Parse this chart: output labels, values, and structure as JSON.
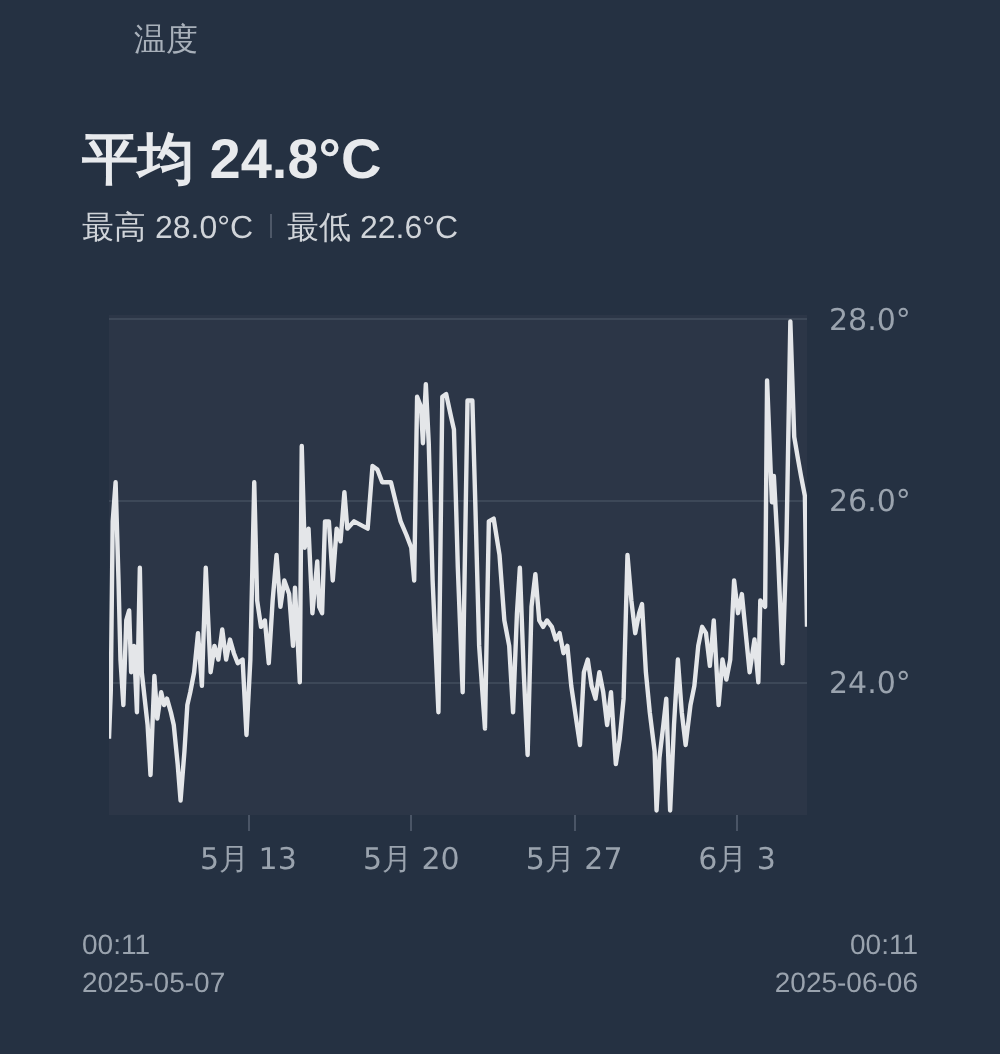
{
  "chart_data": {
    "type": "line",
    "title": "温度",
    "subtitle": "平均 24.8°C",
    "annotations": [
      "最高 28.0°C",
      "最低 22.6°C",
      "00:11\n2025-05-07",
      "00:11\n2025-06-06"
    ],
    "xlim": [
      "2025-05-07T00:11",
      "2025-06-06T00:11"
    ],
    "ylim": [
      22.55,
      28.05
    ],
    "xticks": [
      {
        "value": "2025-05-13",
        "label": "5月 13"
      },
      {
        "value": "2025-05-20",
        "label": "5月 20"
      },
      {
        "value": "2025-05-27",
        "label": "5月 27"
      },
      {
        "value": "2025-06-03",
        "label": "6月 3"
      }
    ],
    "yticks": [
      {
        "value": 24,
        "label": "24.0°"
      },
      {
        "value": 26,
        "label": "26.0°"
      },
      {
        "value": 28,
        "label": "28.0°"
      }
    ],
    "grid": "y",
    "marker": "none",
    "line_style": "solid",
    "series": [
      {
        "color": "#e4e6e9",
        "x": [
          "2025-05-07T00:11",
          "2025-05-07T02:00",
          "2025-05-07T04:00",
          "2025-05-07T07:00",
          "2025-05-07T10:00",
          "2025-05-07T12:00",
          "2025-05-07T15:00",
          "2025-05-07T18:00",
          "2025-05-07T21:00",
          "2025-05-07T23:00",
          "2025-05-08T02:00",
          "2025-05-08T05:00",
          "2025-05-08T08:00",
          "2025-05-08T10:00",
          "2025-05-08T13:00",
          "2025-05-08T16:00",
          "2025-05-08T19:00",
          "2025-05-08T23:00",
          "2025-05-09T02:00",
          "2025-05-09T06:00",
          "2025-05-09T09:00",
          "2025-05-09T12:00",
          "2025-05-09T16:00",
          "2025-05-09T19:00",
          "2025-05-09T23:00",
          "2025-05-10T02:00",
          "2025-05-10T06:00",
          "2025-05-10T09:00",
          "2025-05-10T12:00",
          "2025-05-10T16:00",
          "2025-05-10T20:00",
          "2025-05-11T00:00",
          "2025-05-11T04:00",
          "2025-05-11T09:00",
          "2025-05-11T13:00",
          "2025-05-11T17:00",
          "2025-05-11T21:00",
          "2025-05-12T01:00",
          "2025-05-12T05:00",
          "2025-05-12T09:00",
          "2025-05-12T13:00",
          "2025-05-12T18:00",
          "2025-05-12T22:00",
          "2025-05-13T02:00",
          "2025-05-13T06:00",
          "2025-05-13T09:00",
          "2025-05-13T13:00",
          "2025-05-13T17:00",
          "2025-05-13T21:00",
          "2025-05-14T01:00",
          "2025-05-14T05:00",
          "2025-05-14T09:00",
          "2025-05-14T13:00",
          "2025-05-14T18:00",
          "2025-05-14T22:00",
          "2025-05-15T00:00",
          "2025-05-15T05:00",
          "2025-05-15T07:00",
          "2025-05-15T10:00",
          "2025-05-15T14:00",
          "2025-05-15T18:00",
          "2025-05-15T23:00",
          "2025-05-16T01:00",
          "2025-05-16T04:00",
          "2025-05-16T07:00",
          "2025-05-16T11:00",
          "2025-05-16T15:00",
          "2025-05-16T19:00",
          "2025-05-16T23:00",
          "2025-05-17T03:00",
          "2025-05-17T06:00",
          "2025-05-17T13:00",
          "2025-05-18T03:00",
          "2025-05-18T08:00",
          "2025-05-18T13:00",
          "2025-05-18T18:00",
          "2025-05-19T03:00",
          "2025-05-19T08:00",
          "2025-05-19T13:00",
          "2025-05-19T19:00",
          "2025-05-20T00:00",
          "2025-05-20T03:00",
          "2025-05-20T06:00",
          "2025-05-20T10:00",
          "2025-05-20T12:00",
          "2025-05-20T15:00",
          "2025-05-20T18:00",
          "2025-05-20T22:00",
          "2025-05-21T04:00",
          "2025-05-21T08:00",
          "2025-05-21T12:00",
          "2025-05-21T17:00",
          "2025-05-21T20:00",
          "2025-05-22T00:00",
          "2025-05-22T05:00",
          "2025-05-22T10:00",
          "2025-05-22T15:00",
          "2025-05-22T18:00",
          "2025-05-22T22:00",
          "2025-05-23T04:00",
          "2025-05-23T08:00",
          "2025-05-23T13:00",
          "2025-05-23T19:00",
          "2025-05-24T00:00",
          "2025-05-24T05:00",
          "2025-05-24T09:00",
          "2025-05-24T13:00",
          "2025-05-24T16:00",
          "2025-05-24T20:00",
          "2025-05-25T00:00",
          "2025-05-25T04:00",
          "2025-05-25T08:00",
          "2025-05-25T12:00",
          "2025-05-25T16:00",
          "2025-05-25T20:00",
          "2025-05-26T01:00",
          "2025-05-26T05:00",
          "2025-05-26T09:00",
          "2025-05-26T13:00",
          "2025-05-26T17:00",
          "2025-05-26T21:00",
          "2025-05-27T01:00",
          "2025-05-27T06:00",
          "2025-05-27T10:00",
          "2025-05-27T14:00",
          "2025-05-27T18:00",
          "2025-05-27T22:00",
          "2025-05-28T02:00",
          "2025-05-28T06:00",
          "2025-05-28T10:00",
          "2025-05-28T14:00",
          "2025-05-28T19:00",
          "2025-05-28T23:00",
          "2025-05-29T03:00",
          "2025-05-29T07:00",
          "2025-05-29T11:00",
          "2025-05-29T15:00",
          "2025-05-29T19:00",
          "2025-05-29T22:00",
          "2025-05-30T02:00",
          "2025-05-30T06:00",
          "2025-05-30T11:00",
          "2025-05-30T13:00",
          "2025-05-30T16:00",
          "2025-05-30T20:00",
          "2025-05-30T23:00",
          "2025-05-31T03:00",
          "2025-05-31T07:00",
          "2025-05-31T11:00",
          "2025-05-31T15:00",
          "2025-05-31T19:00",
          "2025-06-01T00:00",
          "2025-06-01T04:00",
          "2025-06-01T08:00",
          "2025-06-01T12:00",
          "2025-06-01T16:00",
          "2025-06-01T20:00",
          "2025-06-02T00:00",
          "2025-06-02T05:00",
          "2025-06-02T09:00",
          "2025-06-02T13:00",
          "2025-06-02T17:00",
          "2025-06-02T21:00",
          "2025-06-03T01:00",
          "2025-06-03T05:00",
          "2025-06-03T09:00",
          "2025-06-03T13:00",
          "2025-06-03T18:00",
          "2025-06-03T22:00",
          "2025-06-04T00:00",
          "2025-06-04T05:00",
          "2025-06-04T07:00",
          "2025-06-04T12:00",
          "2025-06-04T14:00",
          "2025-06-04T18:00",
          "2025-06-04T23:00",
          "2025-06-05T03:00",
          "2025-06-05T07:00",
          "2025-06-05T11:00",
          "2025-06-05T15:00",
          "2025-06-05T18:00",
          "2025-06-05T22:00",
          "2025-06-06T00:11"
        ],
        "values": [
          23.39,
          23.9,
          25.78,
          26.21,
          25.13,
          24.26,
          23.76,
          24.69,
          24.8,
          24.12,
          24.41,
          23.68,
          25.27,
          24.12,
          23.83,
          23.54,
          22.99,
          24.08,
          23.61,
          23.9,
          23.76,
          23.83,
          23.68,
          23.54,
          23.11,
          22.71,
          23.25,
          23.76,
          23.9,
          24.12,
          24.55,
          23.97,
          25.27,
          24.12,
          24.41,
          24.26,
          24.59,
          24.26,
          24.48,
          24.33,
          24.22,
          24.26,
          23.43,
          24.26,
          26.21,
          24.91,
          24.62,
          24.69,
          24.22,
          24.91,
          25.41,
          24.84,
          25.13,
          24.98,
          24.41,
          25.05,
          24.01,
          26.61,
          25.49,
          25.7,
          24.77,
          25.34,
          24.84,
          24.77,
          25.78,
          25.78,
          25.13,
          25.7,
          25.56,
          26.1,
          25.7,
          25.78,
          25.7,
          26.39,
          26.35,
          26.21,
          26.21,
          25.99,
          25.78,
          25.63,
          25.49,
          25.13,
          27.15,
          27.04,
          26.64,
          27.29,
          26.64,
          25.13,
          23.68,
          27.15,
          27.18,
          26.93,
          26.79,
          25.27,
          23.9,
          27.11,
          27.11,
          25.99,
          24.41,
          23.5,
          25.78,
          25.81,
          25.41,
          24.69,
          24.41,
          23.68,
          24.77,
          25.27,
          24.12,
          23.21,
          24.84,
          25.2,
          24.69,
          24.62,
          24.69,
          24.62,
          24.48,
          24.55,
          24.33,
          24.41,
          23.97,
          23.68,
          23.32,
          24.12,
          24.26,
          23.97,
          23.83,
          24.12,
          23.9,
          23.54,
          23.9,
          23.11,
          23.39,
          23.83,
          25.41,
          24.91,
          24.55,
          24.77,
          24.87,
          24.12,
          23.68,
          23.25,
          22.6,
          23.18,
          23.54,
          23.83,
          22.6,
          23.54,
          24.26,
          23.68,
          23.32,
          23.76,
          23.97,
          24.41,
          24.62,
          24.55,
          24.19,
          24.69,
          23.76,
          24.26,
          24.04,
          24.26,
          25.13,
          24.77,
          24.98,
          24.55,
          24.12,
          24.48,
          24.01,
          24.91,
          24.84,
          27.33,
          25.99,
          26.28,
          25.49,
          24.22,
          25.56,
          27.98,
          26.71,
          26.46,
          26.28,
          26.06,
          24.62
        ]
      }
    ]
  }
}
